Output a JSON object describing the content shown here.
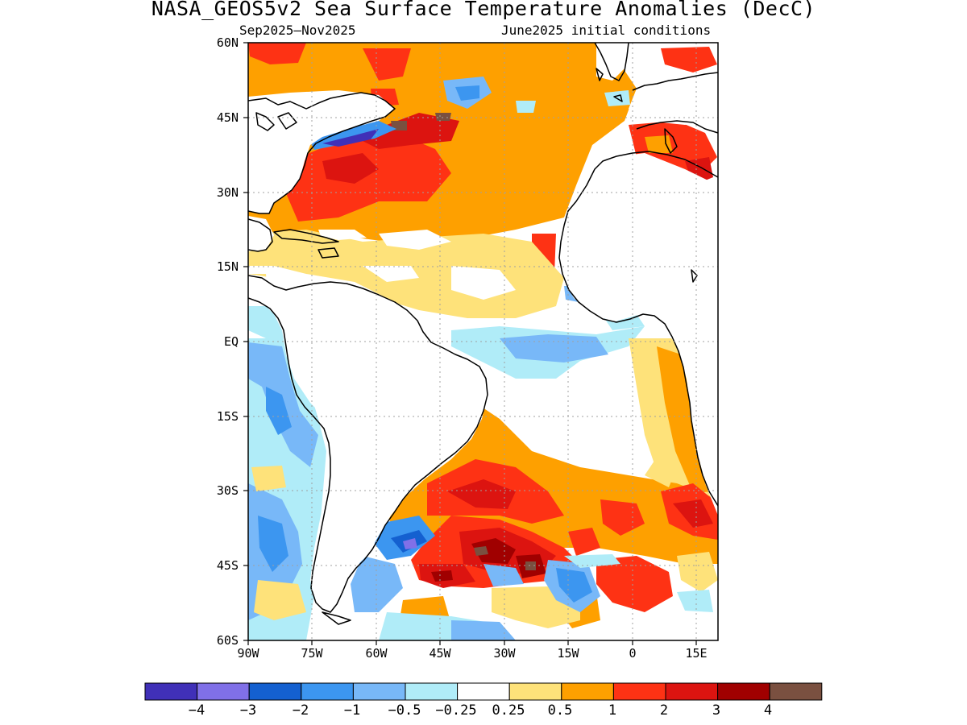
{
  "title": "NASA_GEOS5v2 Sea Surface Temperature Anomalies (DecC)",
  "subtitle_left": "Sep2025–Nov2025",
  "subtitle_right": "June2025 initial conditions",
  "map": {
    "projection": "lat-lon",
    "lon_range": [
      -90,
      20
    ],
    "lat_range": [
      -60,
      60
    ],
    "grid": "dotted",
    "lat_ticks": [
      "60N",
      "45N",
      "30N",
      "15N",
      "EQ",
      "15S",
      "30S",
      "45S",
      "60S"
    ],
    "lon_ticks": [
      "90W",
      "75W",
      "60W",
      "45W",
      "30W",
      "15W",
      "0",
      "15E"
    ],
    "ocean_base_color": "#ffffff",
    "land_color": "#ffffff",
    "coastline_color": "#000000"
  },
  "colorbar": {
    "colors": [
      "#4030b8",
      "#8070e8",
      "#1460d0",
      "#3c96f0",
      "#78b8f8",
      "#b0ecf8",
      "#ffffff",
      "#fee27a",
      "#fea000",
      "#fe3214",
      "#dc1410",
      "#a00000",
      "#7a5040"
    ],
    "labels": [
      "−4",
      "−3",
      "−2",
      "−1",
      "−0.5",
      "−0.25",
      "0.25",
      "0.5",
      "1",
      "2",
      "3",
      "4"
    ]
  }
}
